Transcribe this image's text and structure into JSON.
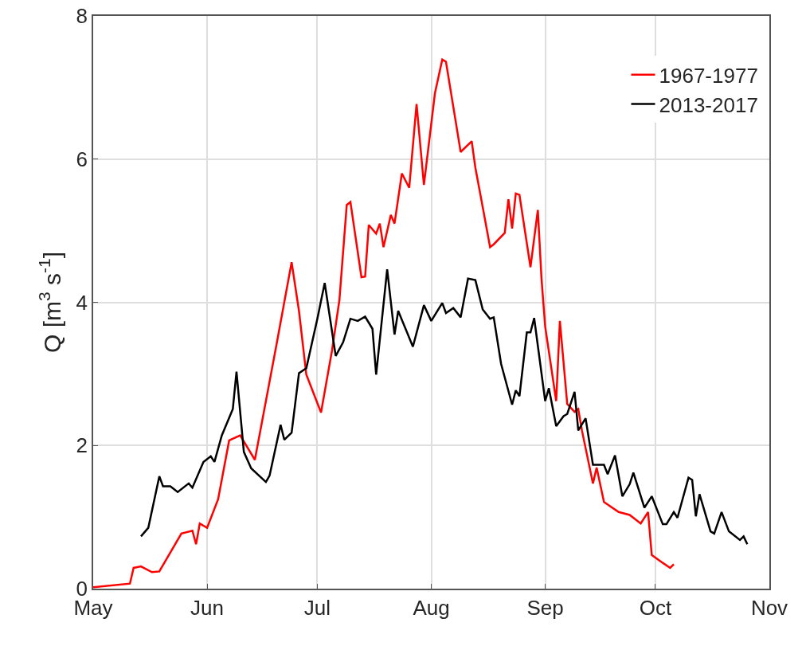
{
  "chart_data": {
    "type": "line",
    "ylabel": "Q [m$^{3}$ s$^{-1}$]",
    "xlim": [
      "--05-01",
      "--11-01"
    ],
    "xticks": [
      {
        "value": "--05-01",
        "label": "May"
      },
      {
        "value": "--06-01",
        "label": "Jun"
      },
      {
        "value": "--07-01",
        "label": "Jul"
      },
      {
        "value": "--08-01",
        "label": "Aug"
      },
      {
        "value": "--09-01",
        "label": "Sep"
      },
      {
        "value": "--10-01",
        "label": "Oct"
      },
      {
        "value": "--11-01",
        "label": "Nov"
      }
    ],
    "ylim": [
      0,
      8
    ],
    "yticks": [
      0,
      2,
      4,
      6,
      8
    ],
    "grid": true,
    "legend": "top right",
    "line_style": "solid",
    "marker": "none",
    "series": [
      {
        "name": "1967-1977",
        "color": "#ff0000",
        "x": [
          "--05-01",
          "--05-11",
          "--05-12",
          "--05-14",
          "--05-17",
          "--05-19",
          "--05-25",
          "--05-28",
          "--05-29",
          "--05-30",
          "--06-01",
          "--06-04",
          "--06-07",
          "--06-10",
          "--06-14",
          "--06-20",
          "--06-22",
          "--06-24",
          "--06-26",
          "--06-28",
          "--07-02",
          "--07-05",
          "--07-07",
          "--07-09",
          "--07-10",
          "--07-13",
          "--07-14",
          "--07-15",
          "--07-17",
          "--07-18",
          "--07-19",
          "--07-21",
          "--07-22",
          "--07-24",
          "--07-26",
          "--07-28",
          "--07-30",
          "--08-02",
          "--08-04",
          "--08-05",
          "--08-09",
          "--08-12",
          "--08-13",
          "--08-15",
          "--08-17",
          "--08-18",
          "--08-21",
          "--08-22",
          "--08-23",
          "--08-24",
          "--08-25",
          "--08-28",
          "--08-30",
          "--08-31",
          "--09-01",
          "--09-04",
          "--09-05",
          "--09-07",
          "--09-09",
          "--09-10",
          "--09-11",
          "--09-14",
          "--09-15",
          "--09-17",
          "--09-21",
          "--09-24",
          "--09-27",
          "--09-29",
          "--09-30",
          "--10-03",
          "--10-05",
          "--10-06"
        ],
        "values": [
          0.02,
          0.07,
          0.29,
          0.31,
          0.23,
          0.24,
          0.77,
          0.81,
          0.62,
          0.91,
          0.85,
          1.25,
          2.07,
          2.14,
          1.8,
          3.44,
          4.0,
          4.56,
          3.88,
          2.99,
          2.46,
          3.33,
          4.03,
          5.36,
          5.4,
          4.35,
          4.36,
          5.08,
          4.96,
          5.1,
          4.77,
          5.22,
          5.1,
          5.8,
          5.6,
          6.77,
          5.64,
          6.92,
          7.39,
          7.36,
          6.1,
          6.25,
          5.88,
          5.33,
          4.77,
          4.81,
          4.97,
          5.44,
          5.03,
          5.52,
          5.5,
          4.49,
          5.29,
          4.33,
          3.66,
          2.62,
          3.74,
          2.58,
          2.47,
          2.51,
          2.21,
          1.47,
          1.69,
          1.21,
          1.07,
          1.03,
          0.91,
          1.07,
          0.47,
          0.36,
          0.29,
          0.34
        ]
      },
      {
        "name": "2013-2017",
        "color": "#000000",
        "x": [
          "--05-14",
          "--05-16",
          "--05-19",
          "--05-20",
          "--05-22",
          "--05-24",
          "--05-27",
          "--05-28",
          "--05-31",
          "--06-02",
          "--06-03",
          "--06-05",
          "--06-08",
          "--06-09",
          "--06-11",
          "--06-13",
          "--06-17",
          "--06-18",
          "--06-21",
          "--06-22",
          "--06-24",
          "--06-26",
          "--06-28",
          "--07-01",
          "--07-03",
          "--07-06",
          "--07-08",
          "--07-10",
          "--07-12",
          "--07-14",
          "--07-16",
          "--07-17",
          "--07-20",
          "--07-22",
          "--07-23",
          "--07-27",
          "--07-30",
          "--08-01",
          "--08-04",
          "--08-05",
          "--08-07",
          "--08-09",
          "--08-11",
          "--08-13",
          "--08-15",
          "--08-17",
          "--08-18",
          "--08-20",
          "--08-23",
          "--08-24",
          "--08-25",
          "--08-27",
          "--08-28",
          "--08-29",
          "--09-01",
          "--09-02",
          "--09-04",
          "--09-06",
          "--09-07",
          "--09-09",
          "--09-10",
          "--09-12",
          "--09-14",
          "--09-17",
          "--09-18",
          "--09-20",
          "--09-22",
          "--09-24",
          "--09-25",
          "--09-28",
          "--09-30",
          "--10-03",
          "--10-04",
          "--10-06",
          "--10-07",
          "--10-10",
          "--10-11",
          "--10-12",
          "--10-13",
          "--10-16",
          "--10-17",
          "--10-19",
          "--10-21",
          "--10-24",
          "--10-25",
          "--10-26"
        ],
        "values": [
          0.73,
          0.85,
          1.57,
          1.43,
          1.43,
          1.35,
          1.47,
          1.41,
          1.77,
          1.85,
          1.77,
          2.14,
          2.51,
          3.03,
          1.91,
          1.68,
          1.49,
          1.58,
          2.29,
          2.08,
          2.18,
          3.01,
          3.08,
          3.77,
          4.27,
          3.25,
          3.44,
          3.77,
          3.74,
          3.8,
          3.63,
          2.99,
          4.46,
          3.55,
          3.88,
          3.38,
          3.96,
          3.74,
          3.99,
          3.85,
          3.92,
          3.79,
          4.33,
          4.31,
          3.9,
          3.77,
          3.79,
          3.14,
          2.57,
          2.77,
          2.69,
          3.58,
          3.58,
          3.78,
          2.62,
          2.8,
          2.27,
          2.41,
          2.44,
          2.75,
          2.21,
          2.38,
          1.73,
          1.73,
          1.6,
          1.86,
          1.29,
          1.46,
          1.62,
          1.13,
          1.29,
          0.9,
          0.9,
          1.07,
          0.99,
          1.55,
          1.52,
          1.01,
          1.32,
          0.8,
          0.77,
          1.07,
          0.8,
          0.68,
          0.73,
          0.62
        ]
      }
    ]
  }
}
